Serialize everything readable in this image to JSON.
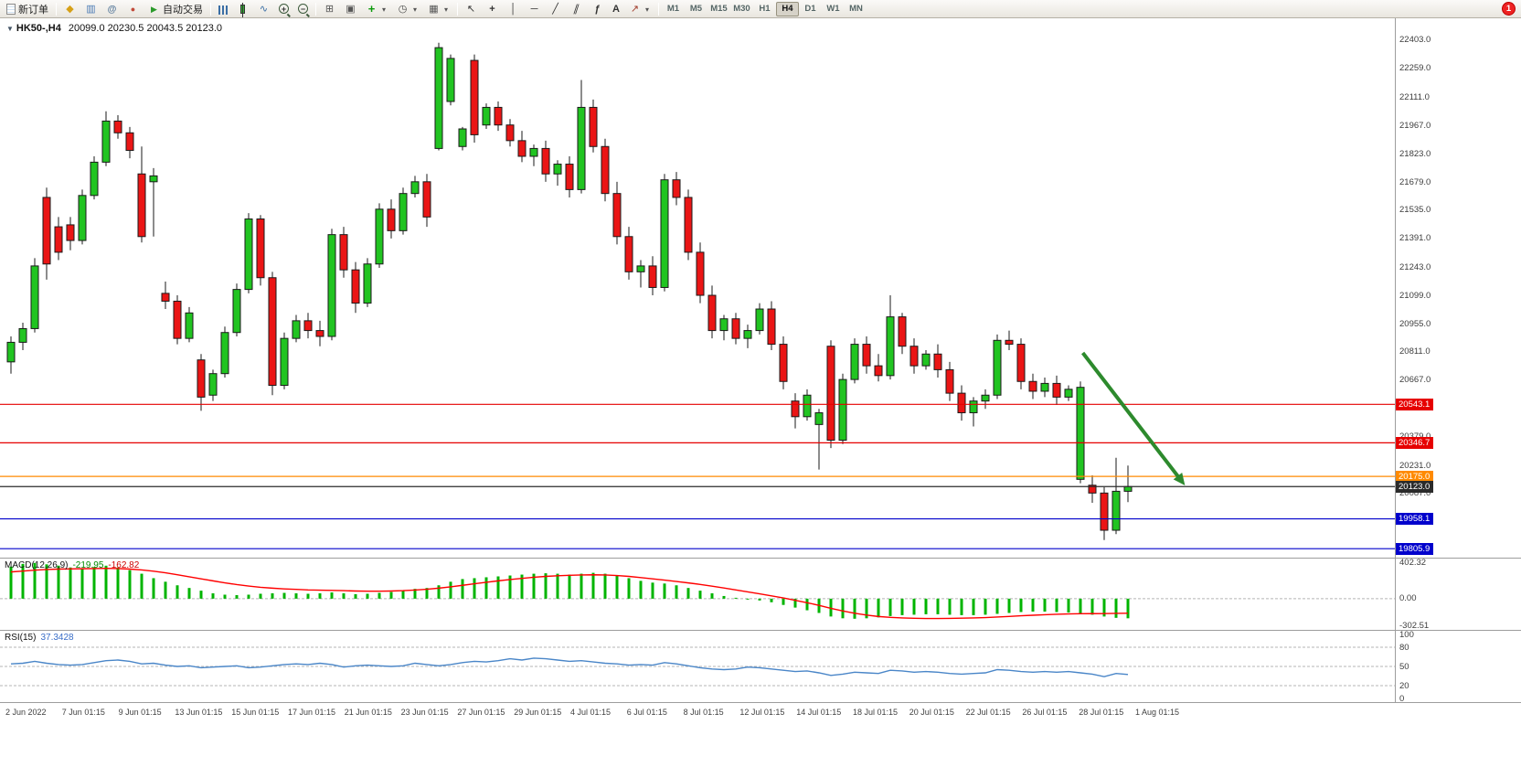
{
  "toolbar": {
    "new_order_label": "新订单",
    "autotrade_label": "自动交易",
    "text_tool_label": "A",
    "timeframes": [
      "M1",
      "M5",
      "M15",
      "M30",
      "H1",
      "H4",
      "D1",
      "W1",
      "MN"
    ],
    "active_timeframe": "H4",
    "notification_count": "1",
    "icon_names": [
      "new-order-icon",
      "market-watch-icon",
      "data-window-icon",
      "community-icon",
      "news-icon",
      "autotrade-icon",
      "bar-chart-icon",
      "candlestick-chart-icon",
      "line-chart-icon",
      "zoom-in-icon",
      "zoom-out-icon",
      "tile-windows-icon",
      "cascade-windows-icon",
      "add-indicator-icon",
      "periods-clock-icon",
      "templates-icon",
      "cursor-icon",
      "crosshair-icon",
      "vertical-line-icon",
      "horizontal-line-icon",
      "trendline-icon",
      "channel-icon",
      "fibonacci-icon",
      "text-tool",
      "arrows-icon",
      "dropdown-icon"
    ]
  },
  "chart_header": {
    "marker": "▼",
    "symbol_tf": "HK50-,H4",
    "ohlc": "20099.0 20230.5 20043.5 20123.0"
  },
  "macd_panel": {
    "label": "MACD(12,26,9)",
    "macd_value": "-219.95",
    "signal_value": "-162.82"
  },
  "rsi_panel": {
    "label": "RSI(15)",
    "value": "37.3428"
  },
  "colors": {
    "candle_up": "#21c421",
    "candle_down": "#ea1515",
    "candle_outline": "#1a1a1a",
    "macd_hist": "#00b400",
    "macd_signal": "#ff0000",
    "rsi_line": "#4a86c8",
    "resistance_line": "#e60000",
    "support_line": "#0000cc",
    "pivot_line": "#ff8a00",
    "current_price_line": "#2b2b2b",
    "arrow": "#2d8a2d"
  },
  "chart_data": {
    "type": "candlestick",
    "symbol": "HK50-",
    "timeframe": "H4",
    "last_ohlc": {
      "open": 20099.0,
      "high": 20230.5,
      "low": 20043.5,
      "close": 20123.0
    },
    "price_axis": {
      "max": 22515,
      "min": 19760,
      "ticks": [
        22403,
        22259,
        22111,
        21967,
        21823,
        21679,
        21535,
        21391,
        21243,
        21099,
        20955,
        20811,
        20667,
        20523,
        20379,
        20231,
        20087,
        19943,
        19799
      ]
    },
    "candles": [
      [
        20760,
        20890,
        20700,
        20860
      ],
      [
        20860,
        20960,
        20820,
        20930
      ],
      [
        20930,
        21290,
        20910,
        21250
      ],
      [
        21600,
        21650,
        21180,
        21260
      ],
      [
        21450,
        21500,
        21280,
        21320
      ],
      [
        21460,
        21500,
        21330,
        21380
      ],
      [
        21380,
        21640,
        21360,
        21610
      ],
      [
        21610,
        21810,
        21590,
        21780
      ],
      [
        21780,
        22040,
        21760,
        21990
      ],
      [
        21990,
        22020,
        21900,
        21930
      ],
      [
        21930,
        21960,
        21800,
        21840
      ],
      [
        21720,
        21860,
        21370,
        21400
      ],
      [
        21680,
        21750,
        21400,
        21710
      ],
      [
        21110,
        21170,
        21030,
        21070
      ],
      [
        21070,
        21100,
        20850,
        20880
      ],
      [
        20880,
        21040,
        20860,
        21010
      ],
      [
        20770,
        20800,
        20510,
        20580
      ],
      [
        20590,
        20720,
        20560,
        20700
      ],
      [
        20700,
        20940,
        20680,
        20910
      ],
      [
        20910,
        21160,
        20890,
        21130
      ],
      [
        21130,
        21520,
        21110,
        21490
      ],
      [
        21490,
        21510,
        21150,
        21190
      ],
      [
        21190,
        21220,
        20590,
        20640
      ],
      [
        20640,
        20910,
        20620,
        20880
      ],
      [
        20880,
        21000,
        20860,
        20970
      ],
      [
        20970,
        21010,
        20880,
        20920
      ],
      [
        20920,
        20970,
        20840,
        20890
      ],
      [
        20890,
        21440,
        20870,
        21410
      ],
      [
        21410,
        21450,
        21190,
        21230
      ],
      [
        21230,
        21270,
        21010,
        21060
      ],
      [
        21060,
        21290,
        21040,
        21260
      ],
      [
        21260,
        21570,
        21240,
        21540
      ],
      [
        21540,
        21590,
        21390,
        21430
      ],
      [
        21430,
        21650,
        21410,
        21620
      ],
      [
        21620,
        21710,
        21600,
        21680
      ],
      [
        21680,
        21720,
        21450,
        21500
      ],
      [
        21850,
        22390,
        21840,
        22365
      ],
      [
        22090,
        22330,
        22070,
        22310
      ],
      [
        21860,
        21960,
        21840,
        21950
      ],
      [
        22300,
        22330,
        21880,
        21920
      ],
      [
        21970,
        22080,
        21950,
        22060
      ],
      [
        22060,
        22090,
        21940,
        21970
      ],
      [
        21970,
        22000,
        21860,
        21890
      ],
      [
        21890,
        21940,
        21780,
        21810
      ],
      [
        21810,
        21870,
        21760,
        21850
      ],
      [
        21850,
        21890,
        21680,
        21720
      ],
      [
        21720,
        21790,
        21660,
        21770
      ],
      [
        21770,
        21810,
        21600,
        21640
      ],
      [
        21640,
        22200,
        21620,
        22060
      ],
      [
        22060,
        22100,
        21830,
        21860
      ],
      [
        21860,
        21900,
        21580,
        21620
      ],
      [
        21620,
        21680,
        21360,
        21400
      ],
      [
        21400,
        21450,
        21180,
        21220
      ],
      [
        21220,
        21280,
        21140,
        21250
      ],
      [
        21250,
        21300,
        21100,
        21140
      ],
      [
        21140,
        21720,
        21120,
        21690
      ],
      [
        21690,
        21730,
        21560,
        21600
      ],
      [
        21600,
        21640,
        21280,
        21320
      ],
      [
        21320,
        21370,
        21060,
        21100
      ],
      [
        21100,
        21150,
        20880,
        20920
      ],
      [
        20920,
        21000,
        20870,
        20980
      ],
      [
        20980,
        21010,
        20850,
        20880
      ],
      [
        20880,
        20950,
        20830,
        20920
      ],
      [
        20920,
        21060,
        20900,
        21030
      ],
      [
        21030,
        21070,
        20820,
        20850
      ],
      [
        20850,
        20890,
        20620,
        20660
      ],
      [
        20560,
        20600,
        20420,
        20480
      ],
      [
        20480,
        20620,
        20460,
        20590
      ],
      [
        20440,
        20520,
        20210,
        20500
      ],
      [
        20840,
        20870,
        20320,
        20360
      ],
      [
        20360,
        20700,
        20340,
        20670
      ],
      [
        20670,
        20880,
        20650,
        20850
      ],
      [
        20850,
        20890,
        20700,
        20740
      ],
      [
        20740,
        20800,
        20660,
        20690
      ],
      [
        20690,
        21100,
        20670,
        20990
      ],
      [
        20990,
        21010,
        20800,
        20840
      ],
      [
        20840,
        20880,
        20700,
        20740
      ],
      [
        20740,
        20820,
        20720,
        20800
      ],
      [
        20800,
        20850,
        20680,
        20720
      ],
      [
        20720,
        20760,
        20560,
        20600
      ],
      [
        20600,
        20640,
        20460,
        20500
      ],
      [
        20500,
        20580,
        20430,
        20560
      ],
      [
        20560,
        20620,
        20520,
        20590
      ],
      [
        20590,
        20900,
        20570,
        20870
      ],
      [
        20870,
        20920,
        20820,
        20850
      ],
      [
        20850,
        20880,
        20620,
        20660
      ],
      [
        20660,
        20700,
        20570,
        20610
      ],
      [
        20610,
        20680,
        20580,
        20650
      ],
      [
        20650,
        20690,
        20540,
        20580
      ],
      [
        20580,
        20640,
        20560,
        20620
      ],
      [
        20160,
        20660,
        20140,
        20630
      ],
      [
        20130,
        20180,
        20040,
        20090
      ],
      [
        20090,
        20120,
        19850,
        19900
      ],
      [
        19900,
        20270,
        19880,
        20099
      ],
      [
        20099,
        20230.5,
        20043.5,
        20123
      ]
    ],
    "hlines": [
      {
        "price": 20543.1,
        "label": "20543.1",
        "color": "#e60000"
      },
      {
        "price": 20346.7,
        "label": "20346.7",
        "color": "#e60000"
      },
      {
        "price": 20175.0,
        "label": "20175.0",
        "color": "#ff8a00"
      },
      {
        "price": 20123.0,
        "label": "20123.0",
        "color": "#2b2b2b"
      },
      {
        "price": 19958.1,
        "label": "19958.1",
        "color": "#0000cc"
      },
      {
        "price": 19805.9,
        "label": "19805.9",
        "color": "#0000cc"
      }
    ],
    "arrow": {
      "from_bar": 90.2,
      "from_price": 20806,
      "to_bar": 98.8,
      "to_price": 20129,
      "color": "#2d8a2d",
      "width": 4
    },
    "macd": {
      "max": 450,
      "min": -350,
      "ticks": [
        {
          "v": 402.32,
          "label": "402.32"
        },
        {
          "v": 0,
          "label": "0.00"
        },
        {
          "v": -302.51,
          "label": "-302.51"
        }
      ],
      "hist": [
        360,
        390,
        400,
        385,
        370,
        350,
        340,
        355,
        370,
        350,
        320,
        280,
        230,
        190,
        150,
        120,
        90,
        60,
        45,
        40,
        45,
        55,
        60,
        65,
        60,
        55,
        60,
        70,
        60,
        50,
        55,
        65,
        75,
        90,
        110,
        120,
        150,
        190,
        220,
        230,
        240,
        250,
        260,
        270,
        280,
        285,
        280,
        270,
        280,
        290,
        280,
        260,
        230,
        200,
        180,
        170,
        150,
        120,
        90,
        60,
        30,
        10,
        -10,
        -20,
        -40,
        -70,
        -100,
        -130,
        -160,
        -200,
        -220,
        -225,
        -220,
        -210,
        -195,
        -185,
        -180,
        -175,
        -175,
        -180,
        -185,
        -185,
        -180,
        -170,
        -160,
        -150,
        -145,
        -145,
        -150,
        -155,
        -165,
        -180,
        -200,
        -215,
        -220
      ],
      "signal": [
        300,
        310,
        320,
        328,
        332,
        334,
        336,
        338,
        340,
        338,
        332,
        322,
        308,
        290,
        268,
        245,
        222,
        200,
        178,
        158,
        142,
        128,
        118,
        110,
        104,
        98,
        95,
        93,
        90,
        86,
        84,
        84,
        86,
        90,
        97,
        106,
        118,
        133,
        150,
        167,
        184,
        200,
        215,
        228,
        240,
        250,
        257,
        262,
        266,
        268,
        266,
        260,
        250,
        237,
        222,
        208,
        193,
        177,
        160,
        140,
        120,
        98,
        76,
        54,
        32,
        8,
        -18,
        -45,
        -75,
        -108,
        -138,
        -163,
        -184,
        -200,
        -210,
        -216,
        -220,
        -222,
        -222,
        -221,
        -219,
        -216,
        -212,
        -206,
        -199,
        -192,
        -186,
        -180,
        -175,
        -171,
        -169,
        -168,
        -167,
        -165,
        -163
      ]
    },
    "rsi": {
      "current": 37.3428,
      "ticks": [
        {
          "v": 100,
          "label": "100"
        },
        {
          "v": 80,
          "label": "80"
        },
        {
          "v": 50,
          "label": "50"
        },
        {
          "v": 20,
          "label": "20"
        },
        {
          "v": 0,
          "label": "0"
        }
      ],
      "levels": [
        80,
        50,
        20
      ],
      "values": [
        54,
        55,
        58,
        55,
        53,
        52,
        53,
        56,
        59,
        60,
        58,
        54,
        55,
        52,
        50,
        51,
        48,
        49,
        50,
        51,
        48,
        49,
        51,
        53,
        54,
        53,
        55,
        53,
        49,
        51,
        52,
        51,
        50,
        51,
        55,
        53,
        51,
        53,
        56,
        58,
        57,
        59,
        62,
        60,
        63,
        62,
        60,
        58,
        59,
        57,
        55,
        54,
        52,
        53,
        52,
        56,
        54,
        51,
        48,
        46,
        45,
        46,
        49,
        48,
        46,
        44,
        42,
        43,
        40,
        36,
        38,
        41,
        40,
        39,
        44,
        43,
        41,
        42,
        41,
        39,
        38,
        39,
        40,
        45,
        44,
        42,
        41,
        42,
        41,
        42,
        40,
        38,
        34,
        39,
        37.34
      ]
    },
    "dates": [
      "2 Jun 2022",
      "7 Jun 01:15",
      "9 Jun 01:15",
      "13 Jun 01:15",
      "15 Jun 01:15",
      "17 Jun 01:15",
      "21 Jun 01:15",
      "23 Jun 01:15",
      "27 Jun 01:15",
      "29 Jun 01:15",
      "4 Jul 01:15",
      "6 Jul 01:15",
      "8 Jul 01:15",
      "12 Jul 01:15",
      "14 Jul 01:15",
      "18 Jul 01:15",
      "20 Jul 01:15",
      "22 Jul 01:15",
      "26 Jul 01:15",
      "28 Jul 01:15",
      "1 Aug 01:15"
    ]
  }
}
